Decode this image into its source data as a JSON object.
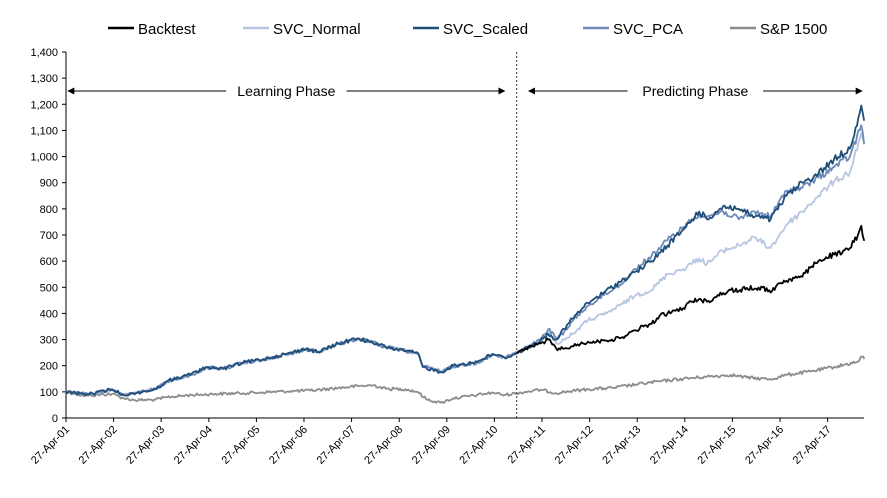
{
  "chart_data": {
    "type": "line",
    "title": "",
    "xlabel": "",
    "ylabel": "",
    "ylim": [
      0,
      1400
    ],
    "yticks": [
      0,
      100,
      200,
      300,
      400,
      500,
      600,
      700,
      800,
      900,
      1000,
      1100,
      1200,
      1300,
      1400
    ],
    "ytick_labels": [
      "0",
      "100",
      "200",
      "300",
      "400",
      "500",
      "600",
      "700",
      "800",
      "900",
      "1,000",
      "1,100",
      "1,200",
      "1,300",
      "1,400"
    ],
    "xlim": [
      "2001-04-27",
      "2018-01-31"
    ],
    "xticks": [
      "2001-04-27",
      "2002-04-27",
      "2003-04-27",
      "2004-04-27",
      "2005-04-27",
      "2006-04-27",
      "2007-04-27",
      "2008-04-27",
      "2009-04-27",
      "2010-04-27",
      "2011-04-27",
      "2012-04-27",
      "2013-04-27",
      "2014-04-27",
      "2015-04-27",
      "2016-04-27",
      "2017-04-27"
    ],
    "xtick_labels": [
      "27-Apr-01",
      "27-Apr-02",
      "27-Apr-03",
      "27-Apr-04",
      "27-Apr-05",
      "27-Apr-06",
      "27-Apr-07",
      "27-Apr-08",
      "27-Apr-09",
      "27-Apr-10",
      "27-Apr-11",
      "27-Apr-12",
      "27-Apr-13",
      "27-Apr-14",
      "27-Apr-15",
      "27-Apr-16",
      "27-Apr-17"
    ],
    "legend_position": "top",
    "grid": false,
    "split_date": "2010-10-15",
    "annotations": {
      "learning": "Learning Phase",
      "predicting": "Predicting Phase"
    },
    "series": [
      {
        "name": "Backtest",
        "color": "#000000",
        "points": [
          [
            "2010-10-15",
            248
          ],
          [
            "2010-12-15",
            262
          ],
          [
            "2011-02-15",
            275
          ],
          [
            "2011-04-15",
            285
          ],
          [
            "2011-06-15",
            300
          ],
          [
            "2011-08-15",
            265
          ],
          [
            "2011-10-15",
            265
          ],
          [
            "2011-12-15",
            275
          ],
          [
            "2012-02-15",
            283
          ],
          [
            "2012-04-15",
            292
          ],
          [
            "2012-06-15",
            290
          ],
          [
            "2012-08-15",
            298
          ],
          [
            "2012-10-15",
            300
          ],
          [
            "2012-12-15",
            305
          ],
          [
            "2013-02-15",
            320
          ],
          [
            "2013-04-15",
            335
          ],
          [
            "2013-06-15",
            350
          ],
          [
            "2013-08-15",
            360
          ],
          [
            "2013-10-15",
            390
          ],
          [
            "2013-12-15",
            400
          ],
          [
            "2014-02-15",
            410
          ],
          [
            "2014-04-15",
            420
          ],
          [
            "2014-06-15",
            445
          ],
          [
            "2014-08-15",
            455
          ],
          [
            "2014-10-15",
            445
          ],
          [
            "2014-12-15",
            462
          ],
          [
            "2015-02-15",
            478
          ],
          [
            "2015-04-15",
            490
          ],
          [
            "2015-06-15",
            485
          ],
          [
            "2015-08-15",
            498
          ],
          [
            "2015-10-15",
            495
          ],
          [
            "2015-12-15",
            500
          ],
          [
            "2016-02-15",
            480
          ],
          [
            "2016-04-15",
            515
          ],
          [
            "2016-06-15",
            525
          ],
          [
            "2016-08-15",
            535
          ],
          [
            "2016-10-15",
            540
          ],
          [
            "2016-12-15",
            575
          ],
          [
            "2017-02-15",
            600
          ],
          [
            "2017-04-15",
            615
          ],
          [
            "2017-06-15",
            625
          ],
          [
            "2017-08-15",
            630
          ],
          [
            "2017-10-15",
            650
          ],
          [
            "2017-12-15",
            700
          ],
          [
            "2018-01-10",
            735
          ],
          [
            "2018-01-31",
            680
          ]
        ]
      },
      {
        "name": "SVC_Normal",
        "color": "#b7c6e1",
        "points": [
          [
            "2001-04-27",
            100
          ],
          [
            "2001-10-15",
            92
          ],
          [
            "2002-04-15",
            105
          ],
          [
            "2002-07-15",
            90
          ],
          [
            "2002-10-15",
            97
          ],
          [
            "2003-03-15",
            112
          ],
          [
            "2003-06-15",
            140
          ],
          [
            "2003-12-15",
            165
          ],
          [
            "2004-04-15",
            192
          ],
          [
            "2004-08-15",
            190
          ],
          [
            "2005-01-15",
            210
          ],
          [
            "2005-06-15",
            222
          ],
          [
            "2005-12-15",
            242
          ],
          [
            "2006-05-15",
            262
          ],
          [
            "2006-08-15",
            255
          ],
          [
            "2007-01-15",
            282
          ],
          [
            "2007-06-15",
            302
          ],
          [
            "2007-09-15",
            292
          ],
          [
            "2008-01-15",
            270
          ],
          [
            "2008-06-15",
            258
          ],
          [
            "2008-09-15",
            245
          ],
          [
            "2008-10-25",
            200
          ],
          [
            "2009-03-15",
            180
          ],
          [
            "2009-06-15",
            195
          ],
          [
            "2009-12-15",
            210
          ],
          [
            "2010-04-15",
            240
          ],
          [
            "2010-07-15",
            232
          ],
          [
            "2010-10-15",
            248
          ],
          [
            "2011-02-15",
            285
          ],
          [
            "2011-04-15",
            300
          ],
          [
            "2011-06-15",
            330
          ],
          [
            "2011-08-15",
            285
          ],
          [
            "2011-10-15",
            300
          ],
          [
            "2011-12-15",
            320
          ],
          [
            "2012-04-15",
            375
          ],
          [
            "2012-08-15",
            395
          ],
          [
            "2012-12-15",
            430
          ],
          [
            "2013-04-15",
            470
          ],
          [
            "2013-08-15",
            490
          ],
          [
            "2013-12-15",
            550
          ],
          [
            "2014-04-15",
            570
          ],
          [
            "2014-08-15",
            610
          ],
          [
            "2014-10-15",
            590
          ],
          [
            "2015-02-15",
            640
          ],
          [
            "2015-06-15",
            660
          ],
          [
            "2015-10-15",
            690
          ],
          [
            "2016-02-15",
            650
          ],
          [
            "2016-06-15",
            740
          ],
          [
            "2016-10-15",
            790
          ],
          [
            "2017-02-15",
            850
          ],
          [
            "2017-06-15",
            905
          ],
          [
            "2017-10-15",
            940
          ],
          [
            "2018-01-10",
            1090
          ],
          [
            "2018-01-31",
            1060
          ]
        ]
      },
      {
        "name": "SVC_Scaled",
        "color": "#1f4e79",
        "points": [
          [
            "2001-04-27",
            100
          ],
          [
            "2001-10-15",
            90
          ],
          [
            "2002-04-15",
            110
          ],
          [
            "2002-07-15",
            88
          ],
          [
            "2002-10-15",
            95
          ],
          [
            "2003-03-15",
            110
          ],
          [
            "2003-06-15",
            142
          ],
          [
            "2003-12-15",
            168
          ],
          [
            "2004-04-15",
            195
          ],
          [
            "2004-08-15",
            188
          ],
          [
            "2005-01-15",
            212
          ],
          [
            "2005-06-15",
            225
          ],
          [
            "2005-12-15",
            245
          ],
          [
            "2006-05-15",
            265
          ],
          [
            "2006-08-15",
            252
          ],
          [
            "2007-01-15",
            285
          ],
          [
            "2007-06-15",
            305
          ],
          [
            "2007-09-15",
            290
          ],
          [
            "2008-01-15",
            272
          ],
          [
            "2008-06-15",
            255
          ],
          [
            "2008-09-15",
            250
          ],
          [
            "2008-10-25",
            195
          ],
          [
            "2009-03-15",
            175
          ],
          [
            "2009-06-15",
            200
          ],
          [
            "2009-12-15",
            215
          ],
          [
            "2010-04-15",
            245
          ],
          [
            "2010-07-15",
            230
          ],
          [
            "2010-10-15",
            248
          ],
          [
            "2011-02-15",
            280
          ],
          [
            "2011-04-15",
            295
          ],
          [
            "2011-06-15",
            320
          ],
          [
            "2011-08-15",
            300
          ],
          [
            "2011-10-15",
            340
          ],
          [
            "2011-12-15",
            380
          ],
          [
            "2012-04-15",
            440
          ],
          [
            "2012-08-15",
            480
          ],
          [
            "2012-12-15",
            520
          ],
          [
            "2013-04-15",
            560
          ],
          [
            "2013-08-15",
            600
          ],
          [
            "2013-12-15",
            660
          ],
          [
            "2014-04-15",
            720
          ],
          [
            "2014-08-15",
            790
          ],
          [
            "2014-10-15",
            760
          ],
          [
            "2015-02-15",
            810
          ],
          [
            "2015-06-15",
            800
          ],
          [
            "2015-10-15",
            770
          ],
          [
            "2016-02-15",
            760
          ],
          [
            "2016-06-15",
            850
          ],
          [
            "2016-10-15",
            900
          ],
          [
            "2017-02-15",
            935
          ],
          [
            "2017-06-15",
            990
          ],
          [
            "2017-10-15",
            1030
          ],
          [
            "2018-01-10",
            1195
          ],
          [
            "2018-01-31",
            1140
          ]
        ]
      },
      {
        "name": "SVC_PCA",
        "color": "#6f8ab8",
        "points": [
          [
            "2001-04-27",
            100
          ],
          [
            "2001-10-15",
            91
          ],
          [
            "2002-04-15",
            107
          ],
          [
            "2002-07-15",
            89
          ],
          [
            "2002-10-15",
            96
          ],
          [
            "2003-03-15",
            111
          ],
          [
            "2003-06-15",
            141
          ],
          [
            "2003-12-15",
            166
          ],
          [
            "2004-04-15",
            193
          ],
          [
            "2004-08-15",
            189
          ],
          [
            "2005-01-15",
            211
          ],
          [
            "2005-06-15",
            223
          ],
          [
            "2005-12-15",
            243
          ],
          [
            "2006-05-15",
            263
          ],
          [
            "2006-08-15",
            254
          ],
          [
            "2007-01-15",
            283
          ],
          [
            "2007-06-15",
            303
          ],
          [
            "2007-09-15",
            291
          ],
          [
            "2008-01-15",
            271
          ],
          [
            "2008-06-15",
            256
          ],
          [
            "2008-09-15",
            247
          ],
          [
            "2008-10-25",
            198
          ],
          [
            "2009-03-15",
            178
          ],
          [
            "2009-06-15",
            197
          ],
          [
            "2009-12-15",
            212
          ],
          [
            "2010-04-15",
            242
          ],
          [
            "2010-07-15",
            231
          ],
          [
            "2010-10-15",
            248
          ],
          [
            "2011-02-15",
            282
          ],
          [
            "2011-04-15",
            298
          ],
          [
            "2011-06-15",
            340
          ],
          [
            "2011-08-15",
            305
          ],
          [
            "2011-10-15",
            330
          ],
          [
            "2011-12-15",
            370
          ],
          [
            "2012-04-15",
            430
          ],
          [
            "2012-08-15",
            470
          ],
          [
            "2012-12-15",
            510
          ],
          [
            "2013-04-15",
            570
          ],
          [
            "2013-08-15",
            620
          ],
          [
            "2013-12-15",
            680
          ],
          [
            "2014-04-15",
            730
          ],
          [
            "2014-08-15",
            780
          ],
          [
            "2014-10-15",
            770
          ],
          [
            "2015-02-15",
            790
          ],
          [
            "2015-06-15",
            760
          ],
          [
            "2015-10-15",
            790
          ],
          [
            "2016-02-15",
            770
          ],
          [
            "2016-06-15",
            870
          ],
          [
            "2016-10-15",
            880
          ],
          [
            "2017-02-15",
            920
          ],
          [
            "2017-06-15",
            960
          ],
          [
            "2017-10-15",
            1000
          ],
          [
            "2018-01-10",
            1120
          ],
          [
            "2018-01-31",
            1050
          ]
        ]
      },
      {
        "name": "S&P 1500",
        "color": "#8c8c8c",
        "points": [
          [
            "2001-04-27",
            100
          ],
          [
            "2001-09-20",
            85
          ],
          [
            "2002-04-15",
            92
          ],
          [
            "2002-07-15",
            75
          ],
          [
            "2002-10-10",
            68
          ],
          [
            "2003-03-15",
            70
          ],
          [
            "2003-06-15",
            80
          ],
          [
            "2003-12-15",
            88
          ],
          [
            "2004-06-15",
            92
          ],
          [
            "2005-01-15",
            95
          ],
          [
            "2005-06-15",
            98
          ],
          [
            "2006-01-15",
            103
          ],
          [
            "2006-06-15",
            105
          ],
          [
            "2007-01-15",
            115
          ],
          [
            "2007-06-15",
            122
          ],
          [
            "2007-10-15",
            125
          ],
          [
            "2008-01-15",
            112
          ],
          [
            "2008-06-15",
            110
          ],
          [
            "2008-09-15",
            100
          ],
          [
            "2008-11-20",
            72
          ],
          [
            "2009-03-09",
            58
          ],
          [
            "2009-06-15",
            75
          ],
          [
            "2009-12-15",
            88
          ],
          [
            "2010-04-15",
            97
          ],
          [
            "2010-07-15",
            88
          ],
          [
            "2010-10-15",
            95
          ],
          [
            "2011-04-15",
            108
          ],
          [
            "2011-08-15",
            95
          ],
          [
            "2011-10-15",
            100
          ],
          [
            "2012-04-15",
            110
          ],
          [
            "2012-10-15",
            115
          ],
          [
            "2013-04-15",
            128
          ],
          [
            "2013-10-15",
            140
          ],
          [
            "2014-04-15",
            150
          ],
          [
            "2014-10-15",
            158
          ],
          [
            "2015-04-15",
            165
          ],
          [
            "2015-08-15",
            155
          ],
          [
            "2016-02-15",
            148
          ],
          [
            "2016-06-15",
            165
          ],
          [
            "2016-12-15",
            178
          ],
          [
            "2017-06-15",
            195
          ],
          [
            "2017-12-15",
            215
          ],
          [
            "2018-01-20",
            235
          ],
          [
            "2018-01-31",
            228
          ]
        ]
      }
    ]
  }
}
